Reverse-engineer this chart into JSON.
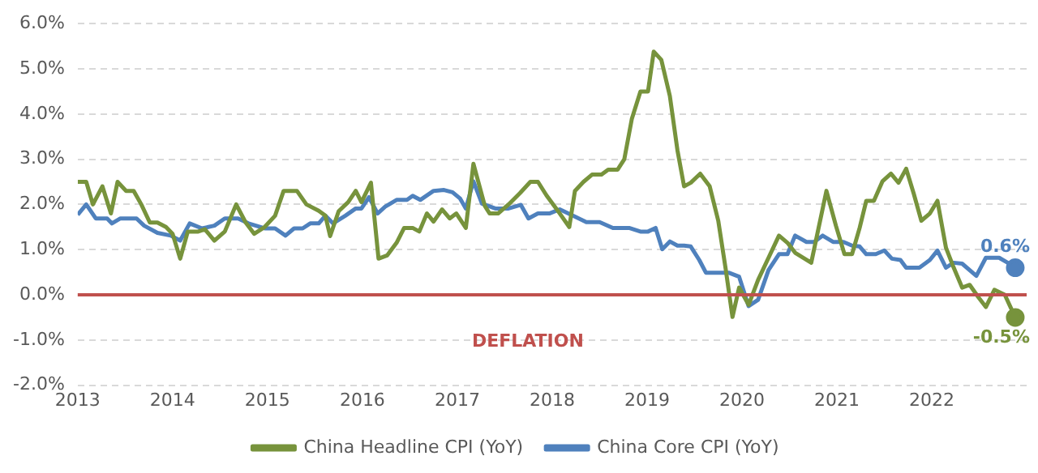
{
  "chart_data": {
    "type": "line",
    "xlim": [
      2013,
      2023
    ],
    "xticks": [
      2013,
      2014,
      2015,
      2016,
      2017,
      2018,
      2019,
      2020,
      2021,
      2022
    ],
    "ylim": [
      -2,
      6
    ],
    "yticks": [
      {
        "value": -2,
        "label": "-2.0%"
      },
      {
        "value": -1,
        "label": "-1.0%"
      },
      {
        "value": 0,
        "label": "0.0%"
      },
      {
        "value": 1,
        "label": "1.0%"
      },
      {
        "value": 2,
        "label": "2.0%"
      },
      {
        "value": 3,
        "label": "3.0%"
      },
      {
        "value": 4,
        "label": "4.0%"
      },
      {
        "value": 5,
        "label": "5.0%"
      },
      {
        "value": 6,
        "label": "6.0%"
      }
    ],
    "grid": "y",
    "legend": "bottom",
    "ref_lines": [
      {
        "axis": "y",
        "value": 0,
        "label": "DEFLATION",
        "color": "#c0504d"
      }
    ],
    "series": [
      {
        "name": "China Headline CPI (YoY)",
        "color": "#77933c",
        "x": [
          2013.0,
          2013.09,
          2013.16,
          2013.26,
          2013.35,
          2013.42,
          2013.51,
          2013.59,
          2013.67,
          2013.76,
          2013.84,
          2013.93,
          2014.0,
          2014.08,
          2014.16,
          2014.27,
          2014.34,
          2014.44,
          2014.55,
          2014.67,
          2014.77,
          2014.86,
          2014.97,
          2015.08,
          2015.17,
          2015.31,
          2015.41,
          2015.54,
          2015.61,
          2015.66,
          2015.75,
          2015.85,
          2015.93,
          2015.99,
          2016.09,
          2016.17,
          2016.26,
          2016.36,
          2016.44,
          2016.53,
          2016.6,
          2016.68,
          2016.75,
          2016.84,
          2016.92,
          2016.99,
          2017.09,
          2017.17,
          2017.29,
          2017.34,
          2017.43,
          2017.54,
          2017.66,
          2017.77,
          2017.85,
          2017.94,
          2018.08,
          2018.18,
          2018.24,
          2018.33,
          2018.42,
          2018.52,
          2018.59,
          2018.69,
          2018.76,
          2018.84,
          2018.93,
          2019.01,
          2019.07,
          2019.15,
          2019.24,
          2019.32,
          2019.39,
          2019.46,
          2019.56,
          2019.66,
          2019.75,
          2019.83,
          2019.9,
          2019.97,
          2020.07,
          2020.17,
          2020.28,
          2020.39,
          2020.48,
          2020.56,
          2020.73,
          2020.89,
          2020.99,
          2021.08,
          2021.16,
          2021.24,
          2021.31,
          2021.39,
          2021.48,
          2021.57,
          2021.65,
          2021.73,
          2021.81,
          2021.89,
          2021.98,
          2022.06,
          2022.15,
          2022.22,
          2022.32,
          2022.4,
          2022.49,
          2022.57,
          2022.66,
          2022.77,
          2022.88
        ],
        "values": [
          2.5,
          2.5,
          2.0,
          2.4,
          1.8,
          2.5,
          2.3,
          2.3,
          2.0,
          1.6,
          1.6,
          1.5,
          1.35,
          0.8,
          1.4,
          1.4,
          1.45,
          1.2,
          1.4,
          2.0,
          1.6,
          1.35,
          1.5,
          1.75,
          2.3,
          2.3,
          2.0,
          1.86,
          1.75,
          1.3,
          1.85,
          2.05,
          2.3,
          2.05,
          2.48,
          0.8,
          0.87,
          1.15,
          1.48,
          1.48,
          1.4,
          1.8,
          1.62,
          1.89,
          1.69,
          1.8,
          1.48,
          2.9,
          1.97,
          1.8,
          1.8,
          2.0,
          2.25,
          2.5,
          2.5,
          2.2,
          1.8,
          1.5,
          2.3,
          2.5,
          2.66,
          2.66,
          2.77,
          2.77,
          3.0,
          3.9,
          4.5,
          4.5,
          5.38,
          5.2,
          4.4,
          3.2,
          2.4,
          2.48,
          2.68,
          2.4,
          1.64,
          0.55,
          -0.49,
          0.16,
          -0.22,
          0.33,
          0.82,
          1.31,
          1.15,
          0.93,
          0.71,
          2.3,
          1.53,
          0.9,
          0.9,
          1.48,
          2.08,
          2.08,
          2.51,
          2.68,
          2.48,
          2.79,
          2.24,
          1.64,
          1.8,
          2.08,
          1.04,
          0.66,
          0.16,
          0.22,
          -0.05,
          -0.27,
          0.11,
          0.0,
          -0.5
        ],
        "value_labels": [
          null,
          null,
          null,
          null,
          null,
          null,
          null,
          null,
          null,
          null,
          null,
          null,
          null,
          null,
          null,
          null,
          null,
          null,
          null,
          null,
          null,
          null,
          null,
          null,
          null,
          null,
          null,
          null,
          null,
          null,
          null,
          null,
          null,
          null,
          null,
          null,
          null,
          null,
          null,
          null,
          null,
          null,
          null,
          null,
          null,
          null,
          null,
          null,
          null,
          null,
          null,
          null,
          null,
          null,
          null,
          null,
          null,
          null,
          null,
          null,
          null,
          null,
          null,
          null,
          null,
          null,
          null,
          null,
          null,
          null,
          null,
          null,
          null,
          null,
          null,
          null,
          null,
          null,
          null,
          null,
          null,
          null,
          null,
          null,
          null,
          null,
          null,
          null,
          null,
          null,
          null,
          null,
          null,
          null,
          null,
          null,
          null,
          null,
          null,
          null,
          null,
          null,
          null,
          null,
          null,
          null,
          null,
          null,
          null,
          null,
          "-0.5%"
        ]
      },
      {
        "name": "China Core CPI (YoY)",
        "color": "#4f81bd",
        "x": [
          2013.0,
          2013.09,
          2013.19,
          2013.31,
          2013.36,
          2013.45,
          2013.62,
          2013.7,
          2013.84,
          2013.98,
          2014.08,
          2014.18,
          2014.31,
          2014.44,
          2014.55,
          2014.69,
          2014.8,
          2014.97,
          2015.08,
          2015.19,
          2015.28,
          2015.37,
          2015.45,
          2015.54,
          2015.61,
          2015.69,
          2015.82,
          2015.93,
          2015.99,
          2016.07,
          2016.16,
          2016.24,
          2016.36,
          2016.47,
          2016.53,
          2016.61,
          2016.75,
          2016.86,
          2016.95,
          2017.03,
          2017.09,
          2017.17,
          2017.26,
          2017.4,
          2017.54,
          2017.67,
          2017.75,
          2017.85,
          2017.97,
          2018.08,
          2018.25,
          2018.36,
          2018.5,
          2018.64,
          2018.81,
          2018.93,
          2019.01,
          2019.09,
          2019.16,
          2019.24,
          2019.32,
          2019.39,
          2019.46,
          2019.55,
          2019.62,
          2019.86,
          2019.97,
          2020.07,
          2020.17,
          2020.28,
          2020.39,
          2020.48,
          2020.56,
          2020.68,
          2020.76,
          2020.85,
          2020.96,
          2021.07,
          2021.16,
          2021.24,
          2021.31,
          2021.41,
          2021.5,
          2021.58,
          2021.67,
          2021.73,
          2021.87,
          2021.98,
          2022.06,
          2022.15,
          2022.23,
          2022.32,
          2022.47,
          2022.57,
          2022.71,
          2022.8,
          2022.88
        ],
        "values": [
          1.77,
          2.0,
          1.69,
          1.69,
          1.58,
          1.69,
          1.69,
          1.53,
          1.37,
          1.31,
          1.2,
          1.58,
          1.47,
          1.53,
          1.69,
          1.69,
          1.58,
          1.47,
          1.47,
          1.31,
          1.47,
          1.47,
          1.58,
          1.58,
          1.75,
          1.58,
          1.75,
          1.91,
          1.91,
          2.16,
          1.8,
          1.95,
          2.1,
          2.1,
          2.19,
          2.1,
          2.3,
          2.32,
          2.27,
          2.13,
          1.91,
          2.51,
          2.02,
          1.91,
          1.91,
          1.99,
          1.69,
          1.8,
          1.8,
          1.89,
          1.72,
          1.61,
          1.61,
          1.48,
          1.48,
          1.4,
          1.4,
          1.48,
          1.01,
          1.18,
          1.09,
          1.09,
          1.07,
          0.77,
          0.49,
          0.49,
          0.4,
          -0.25,
          -0.11,
          0.55,
          0.9,
          0.9,
          1.31,
          1.17,
          1.17,
          1.31,
          1.17,
          1.17,
          1.09,
          1.07,
          0.9,
          0.9,
          0.98,
          0.8,
          0.77,
          0.6,
          0.6,
          0.77,
          0.98,
          0.6,
          0.71,
          0.69,
          0.42,
          0.82,
          0.82,
          0.71,
          0.6
        ],
        "value_labels": [
          null,
          null,
          null,
          null,
          null,
          null,
          null,
          null,
          null,
          null,
          null,
          null,
          null,
          null,
          null,
          null,
          null,
          null,
          null,
          null,
          null,
          null,
          null,
          null,
          null,
          null,
          null,
          null,
          null,
          null,
          null,
          null,
          null,
          null,
          null,
          null,
          null,
          null,
          null,
          null,
          null,
          null,
          null,
          null,
          null,
          null,
          null,
          null,
          null,
          null,
          null,
          null,
          null,
          null,
          null,
          null,
          null,
          null,
          null,
          null,
          null,
          null,
          null,
          null,
          null,
          null,
          null,
          null,
          null,
          null,
          null,
          null,
          null,
          null,
          null,
          null,
          null,
          null,
          null,
          null,
          null,
          null,
          null,
          null,
          null,
          null,
          null,
          null,
          null,
          null,
          null,
          null,
          null,
          null,
          null,
          null,
          "0.6%"
        ]
      }
    ]
  }
}
